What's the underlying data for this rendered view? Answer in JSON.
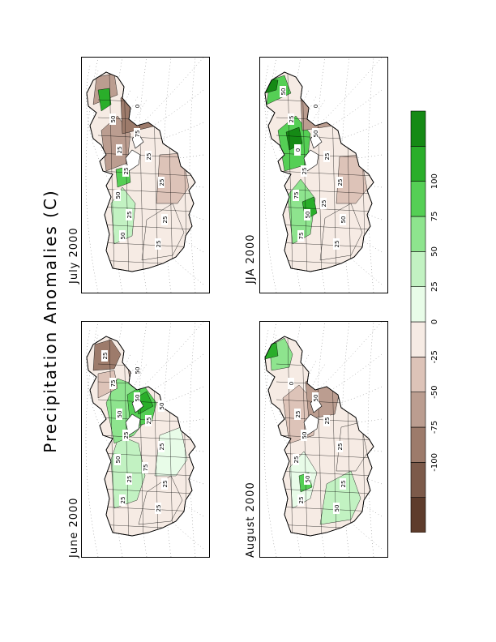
{
  "title": "Precipitation Anomalies (C)",
  "panels": [
    {
      "id": "june",
      "label": "June 2000",
      "contour_labels": [
        "25",
        "25",
        "50",
        "25",
        "50",
        "50",
        "25",
        "75",
        "25",
        "25",
        "25",
        "50",
        "25",
        "75",
        "50"
      ]
    },
    {
      "id": "july",
      "label": "July 2000",
      "contour_labels": [
        "50",
        "25",
        "50",
        "25",
        "25",
        "75",
        "25",
        "50",
        "25",
        "25",
        "25",
        "0"
      ]
    },
    {
      "id": "august",
      "label": "August 2000",
      "contour_labels": [
        "25",
        "50",
        "25",
        "50",
        "25",
        "50",
        "25",
        "0",
        "25",
        "25",
        "50"
      ]
    },
    {
      "id": "jja",
      "label": "JJA 2000",
      "contour_labels": [
        "75",
        "50",
        "75",
        "25",
        "0",
        "50",
        "25",
        "25",
        "25",
        "50",
        "25",
        "0",
        "50",
        "25"
      ]
    }
  ],
  "legend": {
    "ticks": [
      "-100",
      "-75",
      "-50",
      "-25",
      "0",
      "25",
      "50",
      "75",
      "100"
    ],
    "colors": [
      "#5e3c2c",
      "#7c5a4a",
      "#9d7b6b",
      "#bb9d90",
      "#ddc3b8",
      "#f6ebe4",
      "#e8fce8",
      "#c2f2c2",
      "#8ee48e",
      "#55cf55",
      "#2aae2a",
      "#158a15"
    ]
  }
}
